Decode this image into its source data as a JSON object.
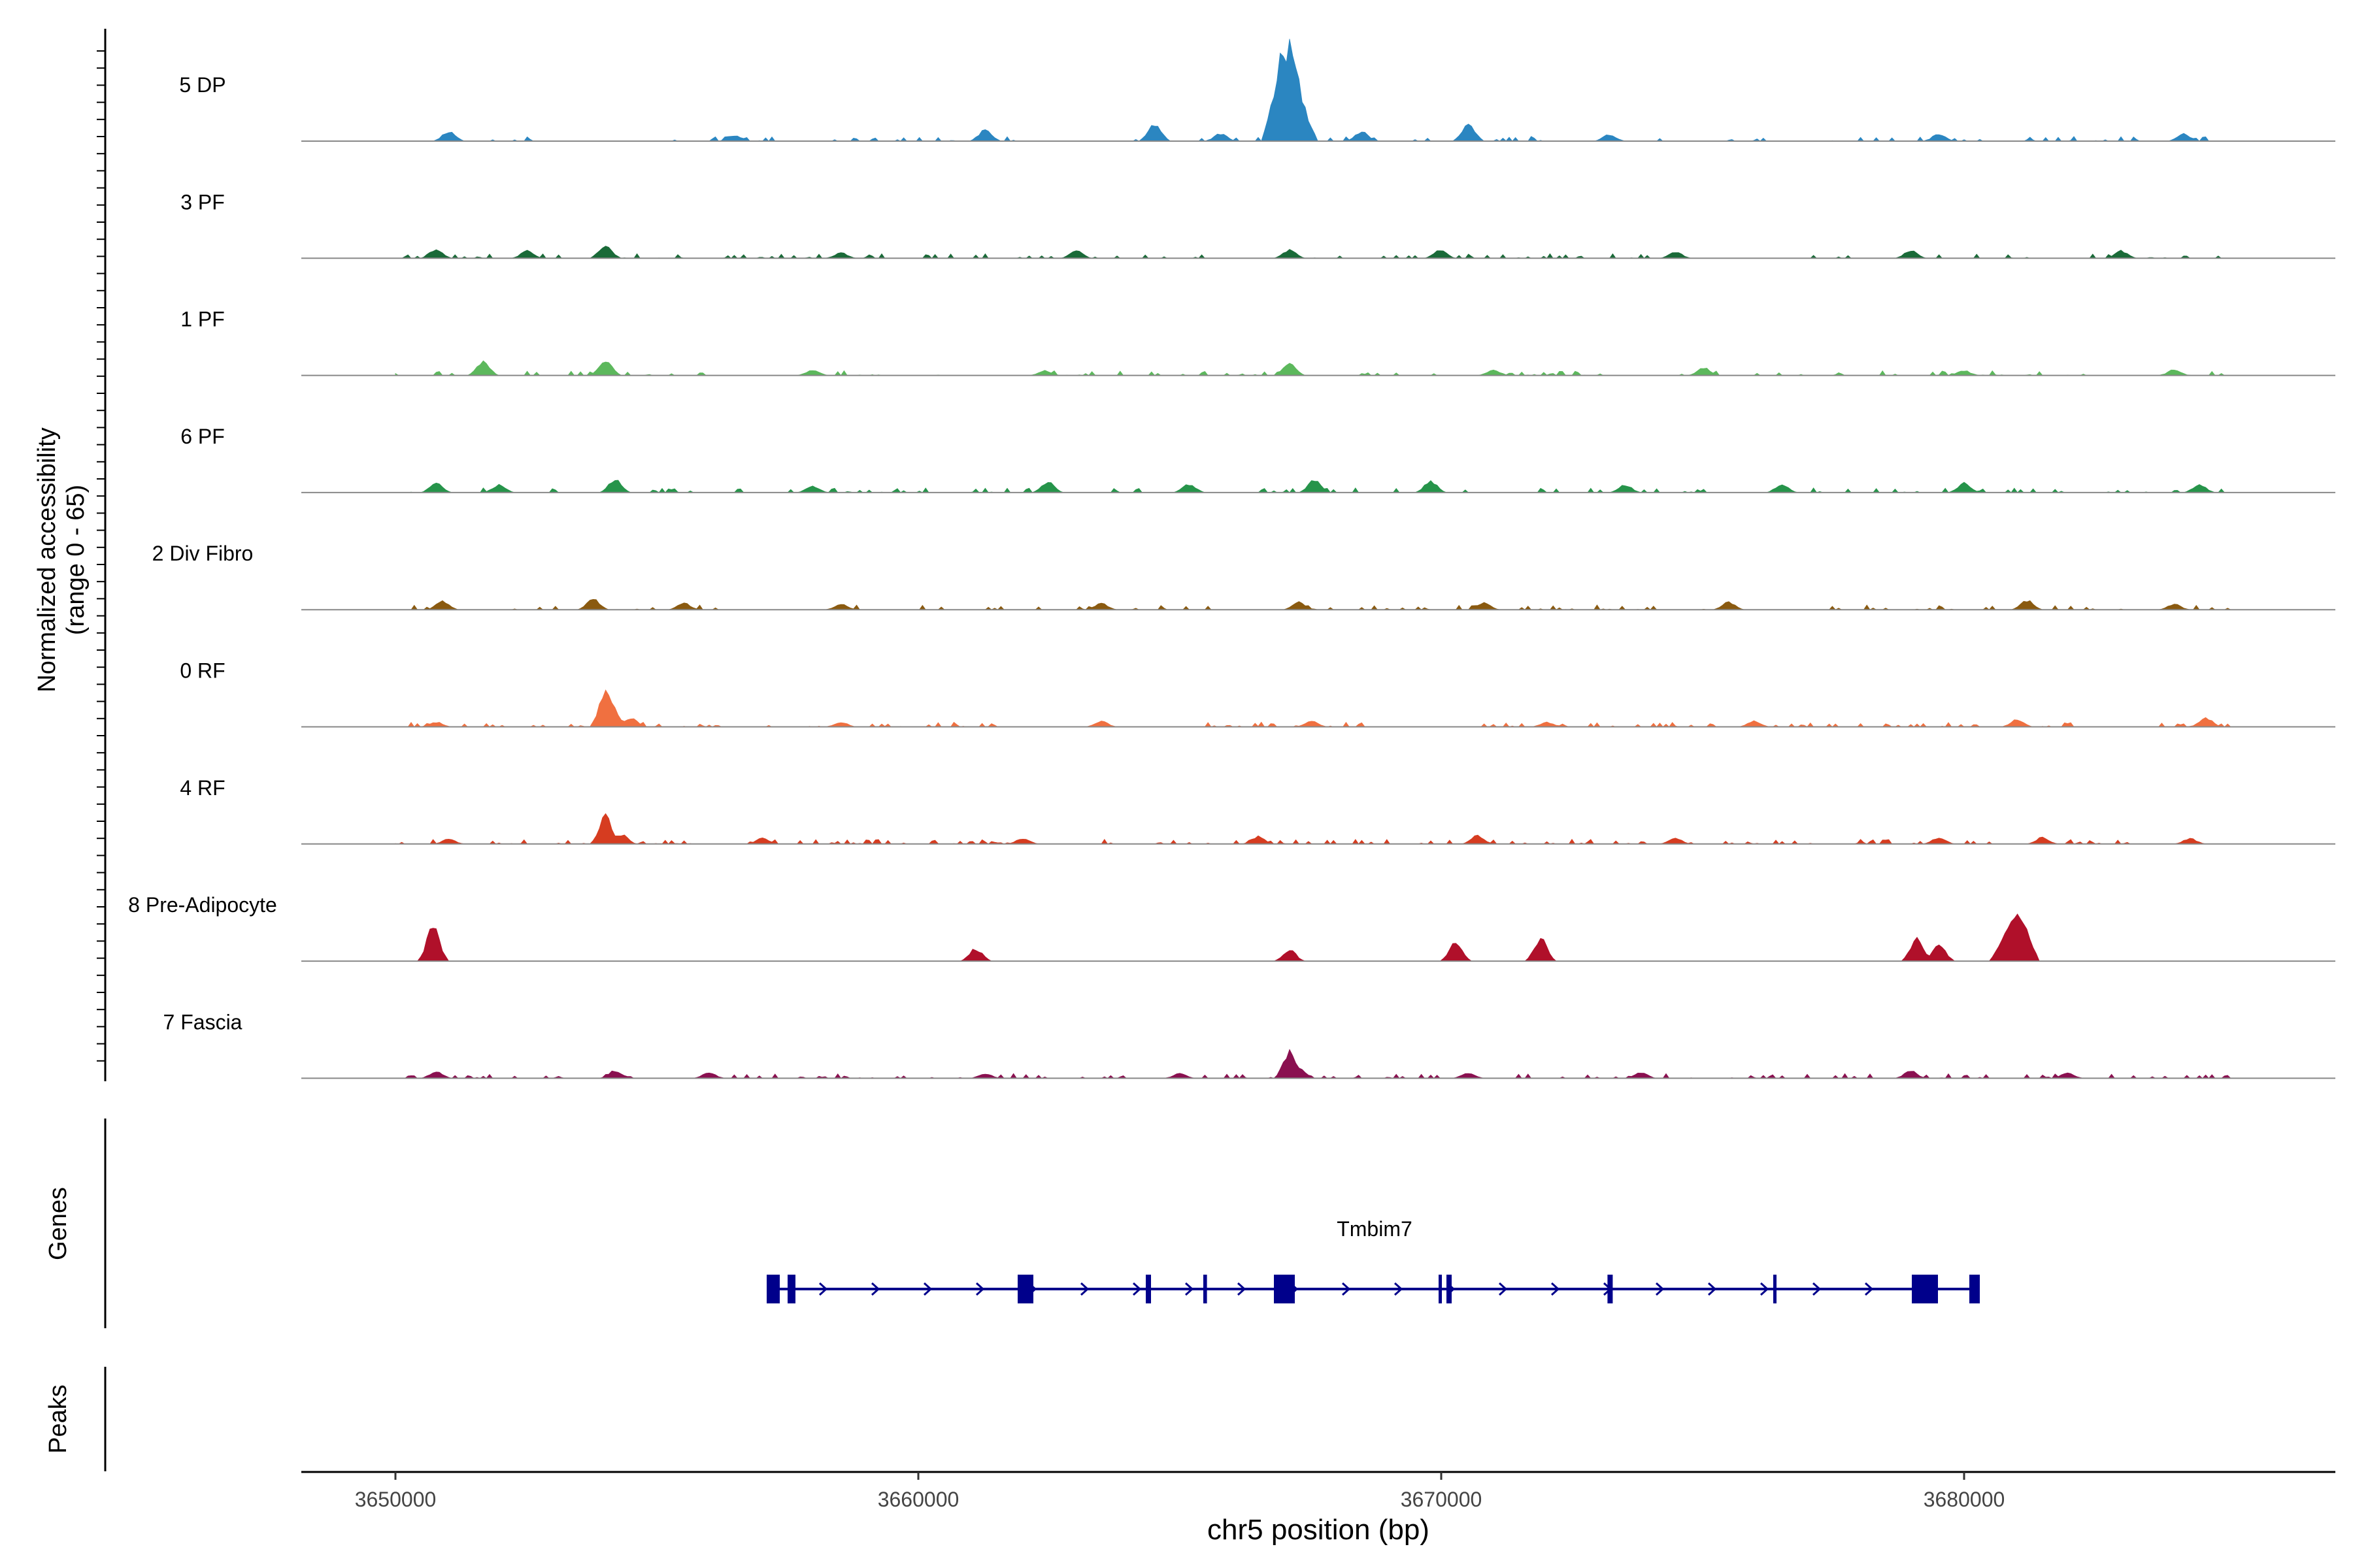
{
  "chart_data": {
    "type": "area",
    "xlabel": "chr5 position (bp)",
    "ylabel_line1": "Normalized accessibility",
    "ylabel_line2": "(range 0 - 65)",
    "y_range": [
      0,
      65
    ],
    "xlim": [
      3648200,
      3687100
    ],
    "x_ticks": [
      3650000,
      3660000,
      3670000,
      3680000
    ],
    "x_tick_labels": [
      "3650000",
      "3660000",
      "3670000",
      "3680000"
    ],
    "data_range": [
      3650000,
      3685200
    ],
    "genes_label": "Genes",
    "peaks_label": "Peaks",
    "tracks": [
      {
        "name": "5 DP",
        "color": "#2b86c1",
        "peaks": [
          [
            3651000,
            0.1
          ],
          [
            3656500,
            0.06
          ],
          [
            3661300,
            0.12
          ],
          [
            3664500,
            0.18
          ],
          [
            3665800,
            0.08
          ],
          [
            3666980,
            0.92
          ],
          [
            3667080,
            1.0
          ],
          [
            3667200,
            0.55
          ],
          [
            3668500,
            0.1
          ],
          [
            3670500,
            0.18
          ],
          [
            3673200,
            0.07
          ],
          [
            3679500,
            0.08
          ],
          [
            3684200,
            0.08
          ]
        ],
        "density": 0.6
      },
      {
        "name": "3 PF",
        "color": "#1a6a38",
        "peaks": [
          [
            3650800,
            0.1
          ],
          [
            3652500,
            0.08
          ],
          [
            3654000,
            0.14
          ],
          [
            3658500,
            0.06
          ],
          [
            3663000,
            0.08
          ],
          [
            3667100,
            0.09
          ],
          [
            3670000,
            0.09
          ],
          [
            3674500,
            0.07
          ],
          [
            3679000,
            0.08
          ],
          [
            3683000,
            0.08
          ]
        ],
        "density": 0.6
      },
      {
        "name": "1 PF",
        "color": "#5cb85c",
        "peaks": [
          [
            3651700,
            0.14
          ],
          [
            3654000,
            0.16
          ],
          [
            3658000,
            0.06
          ],
          [
            3662400,
            0.05
          ],
          [
            3667100,
            0.13
          ],
          [
            3671000,
            0.06
          ],
          [
            3675000,
            0.08
          ],
          [
            3680000,
            0.05
          ],
          [
            3684000,
            0.06
          ]
        ],
        "density": 0.55
      },
      {
        "name": "6 PF",
        "color": "#26944a",
        "peaks": [
          [
            3650800,
            0.1
          ],
          [
            3652000,
            0.08
          ],
          [
            3654200,
            0.14
          ],
          [
            3658000,
            0.07
          ],
          [
            3662500,
            0.11
          ],
          [
            3665200,
            0.09
          ],
          [
            3667600,
            0.14
          ],
          [
            3669800,
            0.12
          ],
          [
            3673500,
            0.08
          ],
          [
            3676500,
            0.08
          ],
          [
            3680000,
            0.1
          ],
          [
            3684500,
            0.09
          ]
        ],
        "density": 0.6
      },
      {
        "name": "2 Div Fibro",
        "color": "#8a5a10",
        "peaks": [
          [
            3650900,
            0.09
          ],
          [
            3653800,
            0.11
          ],
          [
            3655500,
            0.07
          ],
          [
            3658500,
            0.06
          ],
          [
            3663500,
            0.07
          ],
          [
            3667300,
            0.08
          ],
          [
            3670800,
            0.07
          ],
          [
            3675500,
            0.08
          ],
          [
            3681200,
            0.1
          ],
          [
            3684000,
            0.06
          ]
        ],
        "density": 0.6
      },
      {
        "name": "0 RF",
        "color": "#f07040",
        "peaks": [
          [
            3650800,
            0.05
          ],
          [
            3654000,
            0.38
          ],
          [
            3654150,
            0.22
          ],
          [
            3654500,
            0.1
          ],
          [
            3658500,
            0.05
          ],
          [
            3663500,
            0.06
          ],
          [
            3667500,
            0.06
          ],
          [
            3672000,
            0.05
          ],
          [
            3676000,
            0.06
          ],
          [
            3681000,
            0.08
          ],
          [
            3684600,
            0.1
          ]
        ],
        "density": 0.75
      },
      {
        "name": "4 RF",
        "color": "#d63c20",
        "peaks": [
          [
            3651000,
            0.05
          ],
          [
            3654000,
            0.3
          ],
          [
            3654300,
            0.1
          ],
          [
            3657000,
            0.06
          ],
          [
            3662000,
            0.06
          ],
          [
            3666500,
            0.08
          ],
          [
            3670700,
            0.09
          ],
          [
            3674500,
            0.06
          ],
          [
            3679500,
            0.07
          ],
          [
            3681500,
            0.07
          ],
          [
            3684300,
            0.06
          ]
        ],
        "density": 0.75
      },
      {
        "name": "8 Pre-Adipocyte",
        "color": "#b0102a",
        "peaks": [
          [
            3650700,
            0.38
          ],
          [
            3661100,
            0.13
          ],
          [
            3667100,
            0.12
          ],
          [
            3670250,
            0.2
          ],
          [
            3671900,
            0.24
          ],
          [
            3679100,
            0.25
          ],
          [
            3679500,
            0.18
          ],
          [
            3680800,
            0.3
          ],
          [
            3681000,
            0.55
          ]
        ],
        "density": 0.0
      },
      {
        "name": "7 Fascia",
        "color": "#8a1050",
        "peaks": [
          [
            3650800,
            0.07
          ],
          [
            3654200,
            0.08
          ],
          [
            3656000,
            0.06
          ],
          [
            3661300,
            0.05
          ],
          [
            3665000,
            0.05
          ],
          [
            3667100,
            0.28
          ],
          [
            3667300,
            0.12
          ],
          [
            3670500,
            0.06
          ],
          [
            3673800,
            0.06
          ],
          [
            3679000,
            0.08
          ],
          [
            3682000,
            0.06
          ]
        ],
        "density": 0.6
      }
    ],
    "gene": {
      "name": "Tmbim7",
      "color": "#00008b",
      "start": 3657100,
      "end": 3680300,
      "strand": "+",
      "exons": [
        [
          3657100,
          3657350
        ],
        [
          3657500,
          3657650
        ],
        [
          3661900,
          3662200
        ],
        [
          3664350,
          3664450
        ],
        [
          3665450,
          3665520
        ],
        [
          3666800,
          3667200
        ],
        [
          3669950,
          3670000
        ],
        [
          3670100,
          3670200
        ],
        [
          3673180,
          3673280
        ],
        [
          3676350,
          3676400
        ],
        [
          3679000,
          3679500
        ],
        [
          3680100,
          3680300
        ]
      ]
    }
  }
}
